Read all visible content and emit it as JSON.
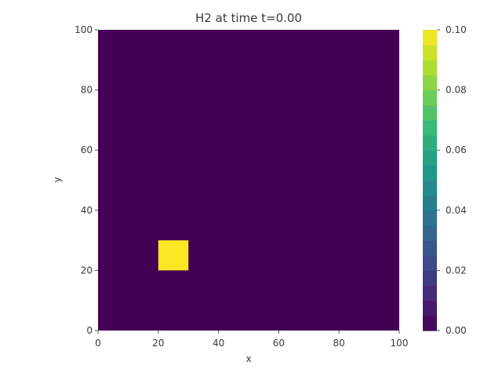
{
  "chart_data": {
    "type": "heatmap",
    "title": "H2 at time t=0.00",
    "xlabel": "x",
    "ylabel": "y",
    "xlim": [
      0,
      100
    ],
    "ylim": [
      0,
      100
    ],
    "xticks": [
      "0",
      "20",
      "40",
      "60",
      "80",
      "100"
    ],
    "yticks": [
      "0",
      "20",
      "40",
      "60",
      "80",
      "100"
    ],
    "background_value": 0.0,
    "regions": [
      {
        "x_range": [
          20,
          30
        ],
        "y_range": [
          20,
          30
        ],
        "value": 0.1
      }
    ],
    "colorbar": {
      "range": [
        0.0,
        0.1
      ],
      "ticks": [
        "0.00",
        "0.02",
        "0.04",
        "0.06",
        "0.08",
        "0.10"
      ],
      "levels": 20,
      "colormap": "viridis"
    },
    "grid": false
  }
}
